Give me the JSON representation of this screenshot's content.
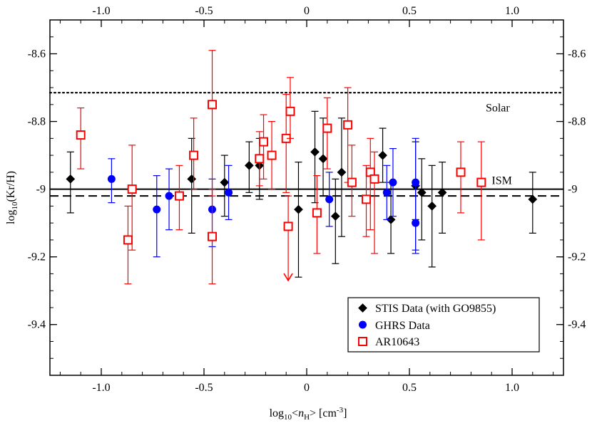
{
  "chart_data": {
    "type": "scatter",
    "title": "",
    "xlabel": "log",
    "xlabel_sub": "10",
    "xlabel_var": "n",
    "xlabel_var_sub": "H",
    "xlabel_unit": "[cm",
    "xlabel_unit_sup": "-3",
    "xlabel_unit_end": "]",
    "ylabel": "log",
    "ylabel_sub": "10",
    "ylabel_rest": "(Kr/H)",
    "xlim": [
      -1.25,
      1.25
    ],
    "ylim": [
      -9.55,
      -8.5
    ],
    "x_ticks": [
      -1.0,
      -0.5,
      0,
      0.5,
      1.0
    ],
    "x_tick_labels": [
      "-1.0",
      "-0.5",
      "0",
      "0.5",
      "1.0"
    ],
    "x_minor_step": 0.1,
    "y_ticks": [
      -8.6,
      -8.8,
      -9.0,
      -9.2,
      -9.4
    ],
    "y_tick_labels": [
      "-8.6",
      "-8.8",
      "-9",
      "-9.2",
      "-9.4"
    ],
    "y_minor_step": 0.05,
    "reference_lines": [
      {
        "name": "Solar",
        "y": -8.715,
        "style": "dotted",
        "label": "Solar",
        "label_x": 0.93,
        "label_y": -8.77
      },
      {
        "name": "ISM",
        "y": -9.0,
        "style": "solid",
        "label": "ISM",
        "label_x": 0.95,
        "label_y": -8.985
      },
      {
        "name": "mean",
        "y": -9.02,
        "style": "dashed",
        "label": ""
      }
    ],
    "legend_position": "bottom-right",
    "series": [
      {
        "name": "STIS Data (with GO9855)",
        "marker": "diamond",
        "color": "#000000",
        "points": [
          {
            "x": -1.15,
            "y": -8.97,
            "lo": -9.07,
            "hi": -8.89
          },
          {
            "x": -0.56,
            "y": -8.97,
            "lo": -9.13,
            "hi": -8.85
          },
          {
            "x": -0.4,
            "y": -8.98,
            "lo": -9.08,
            "hi": -8.9
          },
          {
            "x": -0.28,
            "y": -8.93,
            "lo": -9.01,
            "hi": -8.86
          },
          {
            "x": -0.23,
            "y": -8.93,
            "lo": -9.03,
            "hi": -8.85
          },
          {
            "x": -0.04,
            "y": -9.06,
            "lo": -9.26,
            "hi": -8.92
          },
          {
            "x": 0.04,
            "y": -8.89,
            "lo": -9.04,
            "hi": -8.77
          },
          {
            "x": 0.08,
            "y": -8.91,
            "lo": -9.02,
            "hi": -8.79
          },
          {
            "x": 0.14,
            "y": -9.08,
            "lo": -9.22,
            "hi": -8.97
          },
          {
            "x": 0.17,
            "y": -8.95,
            "lo": -9.14,
            "hi": -8.79
          },
          {
            "x": 0.37,
            "y": -8.9,
            "lo": -8.98,
            "hi": -8.82
          },
          {
            "x": 0.41,
            "y": -9.09,
            "lo": -9.19,
            "hi": -8.98
          },
          {
            "x": 0.53,
            "y": -8.99,
            "lo": -9.09,
            "hi": -8.86
          },
          {
            "x": 0.56,
            "y": -9.01,
            "lo": -9.15,
            "hi": -8.91
          },
          {
            "x": 0.61,
            "y": -9.05,
            "lo": -9.23,
            "hi": -8.93
          },
          {
            "x": 0.66,
            "y": -9.01,
            "lo": -9.13,
            "hi": -8.92
          },
          {
            "x": 1.1,
            "y": -9.03,
            "lo": -9.13,
            "hi": -8.95
          }
        ]
      },
      {
        "name": "GHRS Data",
        "marker": "circle",
        "color": "#0000ff",
        "points": [
          {
            "x": -0.95,
            "y": -8.97,
            "lo": -9.04,
            "hi": -8.91
          },
          {
            "x": -0.73,
            "y": -9.06,
            "lo": -9.2,
            "hi": -8.96
          },
          {
            "x": -0.67,
            "y": -9.02,
            "lo": -9.12,
            "hi": -8.94
          },
          {
            "x": -0.46,
            "y": -9.06,
            "lo": -9.17,
            "hi": -8.97
          },
          {
            "x": -0.38,
            "y": -9.01,
            "lo": -9.09,
            "hi": -8.93
          },
          {
            "x": 0.11,
            "y": -9.03,
            "lo": -9.11,
            "hi": -8.95
          },
          {
            "x": 0.39,
            "y": -9.01,
            "lo": -9.09,
            "hi": -8.93
          },
          {
            "x": 0.42,
            "y": -8.98,
            "lo": -9.08,
            "hi": -8.88
          },
          {
            "x": 0.53,
            "y": -8.98,
            "lo": -9.18,
            "hi": -8.85
          },
          {
            "x": 0.53,
            "y": -9.1,
            "lo": -9.19,
            "hi": -8.99
          }
        ]
      },
      {
        "name": "AR10643",
        "marker": "open-square",
        "color": "#ff0000",
        "points": [
          {
            "x": -1.1,
            "y": -8.84,
            "lo": -8.94,
            "hi": -8.76
          },
          {
            "x": -0.87,
            "y": -9.15,
            "lo": -9.28,
            "hi": -9.05
          },
          {
            "x": -0.85,
            "y": -9.0,
            "lo": -9.18,
            "hi": -8.87
          },
          {
            "x": -0.62,
            "y": -9.02,
            "lo": -9.12,
            "hi": -8.93
          },
          {
            "x": -0.55,
            "y": -8.9,
            "lo": -9.0,
            "hi": -8.79
          },
          {
            "x": -0.46,
            "y": -8.75,
            "lo": -9.02,
            "hi": -8.59
          },
          {
            "x": -0.46,
            "y": -9.14,
            "lo": -9.28,
            "hi": -9.0
          },
          {
            "x": -0.23,
            "y": -8.91,
            "lo": -8.99,
            "hi": -8.83
          },
          {
            "x": -0.21,
            "y": -8.86,
            "lo": -8.97,
            "hi": -8.78
          },
          {
            "x": -0.17,
            "y": -8.9,
            "lo": -9.0,
            "hi": -8.8
          },
          {
            "x": -0.1,
            "y": -8.85,
            "lo": -9.01,
            "hi": -8.72
          },
          {
            "x": -0.09,
            "y": -9.11,
            "lo": -9.27,
            "hi": -9.02,
            "upper_limit": true
          },
          {
            "x": -0.08,
            "y": -8.77,
            "lo": -8.85,
            "hi": -8.67
          },
          {
            "x": 0.05,
            "y": -9.07,
            "lo": -9.19,
            "hi": -8.96
          },
          {
            "x": 0.1,
            "y": -8.82,
            "lo": -8.94,
            "hi": -8.73
          },
          {
            "x": 0.2,
            "y": -8.81,
            "lo": -8.98,
            "hi": -8.7
          },
          {
            "x": 0.22,
            "y": -8.98,
            "lo": -9.08,
            "hi": -8.87
          },
          {
            "x": 0.29,
            "y": -9.03,
            "lo": -9.14,
            "hi": -8.93
          },
          {
            "x": 0.31,
            "y": -8.95,
            "lo": -9.12,
            "hi": -8.85
          },
          {
            "x": 0.33,
            "y": -8.97,
            "lo": -9.19,
            "hi": -8.89
          },
          {
            "x": 0.75,
            "y": -8.95,
            "lo": -9.07,
            "hi": -8.86
          },
          {
            "x": 0.85,
            "y": -8.98,
            "lo": -9.15,
            "hi": -8.86
          }
        ]
      }
    ]
  }
}
